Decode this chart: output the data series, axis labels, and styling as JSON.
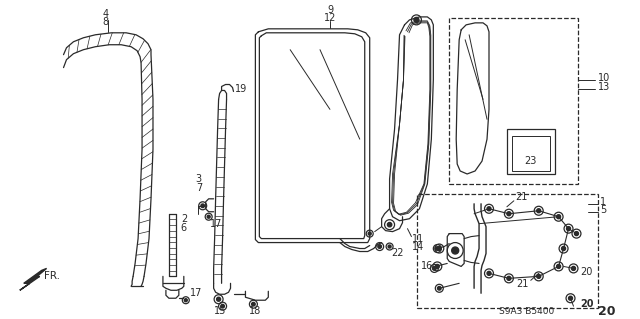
{
  "bg_color": "#ffffff",
  "line_color": "#2a2a2a",
  "diagram_code": "S9A3 B5400",
  "page_num": "20"
}
